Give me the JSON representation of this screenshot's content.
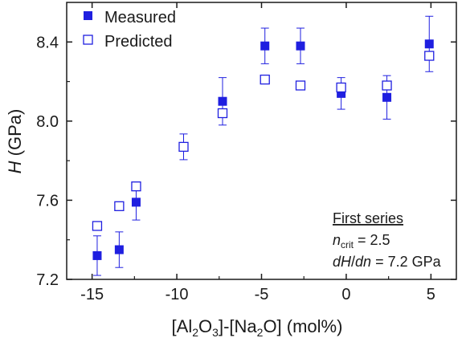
{
  "chart_data": {
    "type": "scatter",
    "xlabel": {
      "pre": "[Al",
      "sub1": "2",
      "mid1": "O",
      "sub2": "3",
      "mid2": "]-[Na",
      "sub3": "2",
      "post": "O] (mol%)"
    },
    "ylabel": {
      "italic": "H",
      "rest": " (GPa)"
    },
    "xlim": [
      -16.5,
      6.5
    ],
    "ylim": [
      7.2,
      8.6
    ],
    "xticks": [
      -15,
      -10,
      -5,
      0,
      5
    ],
    "xtick_labels": [
      "-15",
      "-10",
      "-5",
      "0",
      "5"
    ],
    "yticks": [
      7.2,
      7.6,
      8.0,
      8.4
    ],
    "ytick_labels": [
      "7.2",
      "7.6",
      "8.0",
      "8.4"
    ],
    "color": "#1f1fe0",
    "legend_position": "top-left",
    "series": [
      {
        "name": "Measured",
        "marker": "filled-square",
        "points": [
          {
            "x": -14.7,
            "y": 7.32,
            "err": 0.1
          },
          {
            "x": -13.4,
            "y": 7.35,
            "err": 0.09
          },
          {
            "x": -12.4,
            "y": 7.59,
            "err": 0.09
          },
          {
            "x": -7.3,
            "y": 8.1,
            "err": 0.12
          },
          {
            "x": -4.8,
            "y": 8.38,
            "err": 0.09
          },
          {
            "x": -2.7,
            "y": 8.38,
            "err": 0.09
          },
          {
            "x": -0.3,
            "y": 8.14,
            "err": 0.08
          },
          {
            "x": 2.4,
            "y": 8.12,
            "err": 0.11
          },
          {
            "x": 4.9,
            "y": 8.39,
            "err": 0.14
          }
        ]
      },
      {
        "name": "Predicted",
        "marker": "open-square",
        "points": [
          {
            "x": -14.7,
            "y": 7.47
          },
          {
            "x": -13.4,
            "y": 7.57
          },
          {
            "x": -12.4,
            "y": 7.67
          },
          {
            "x": -9.6,
            "y": 7.87,
            "err": 0.065
          },
          {
            "x": -7.3,
            "y": 8.04
          },
          {
            "x": -4.8,
            "y": 8.21
          },
          {
            "x": -2.7,
            "y": 8.18
          },
          {
            "x": -0.3,
            "y": 8.17
          },
          {
            "x": 2.4,
            "y": 8.18
          },
          {
            "x": 4.9,
            "y": 8.33
          }
        ]
      }
    ],
    "annotation": {
      "title": "First series",
      "line1": {
        "var": "n",
        "sub": "crit",
        "rest": " = 2.5"
      },
      "line2": {
        "d": "dH",
        "slash": "/",
        "dn": "dn",
        "rest": " = 7.2 GPa"
      }
    }
  }
}
